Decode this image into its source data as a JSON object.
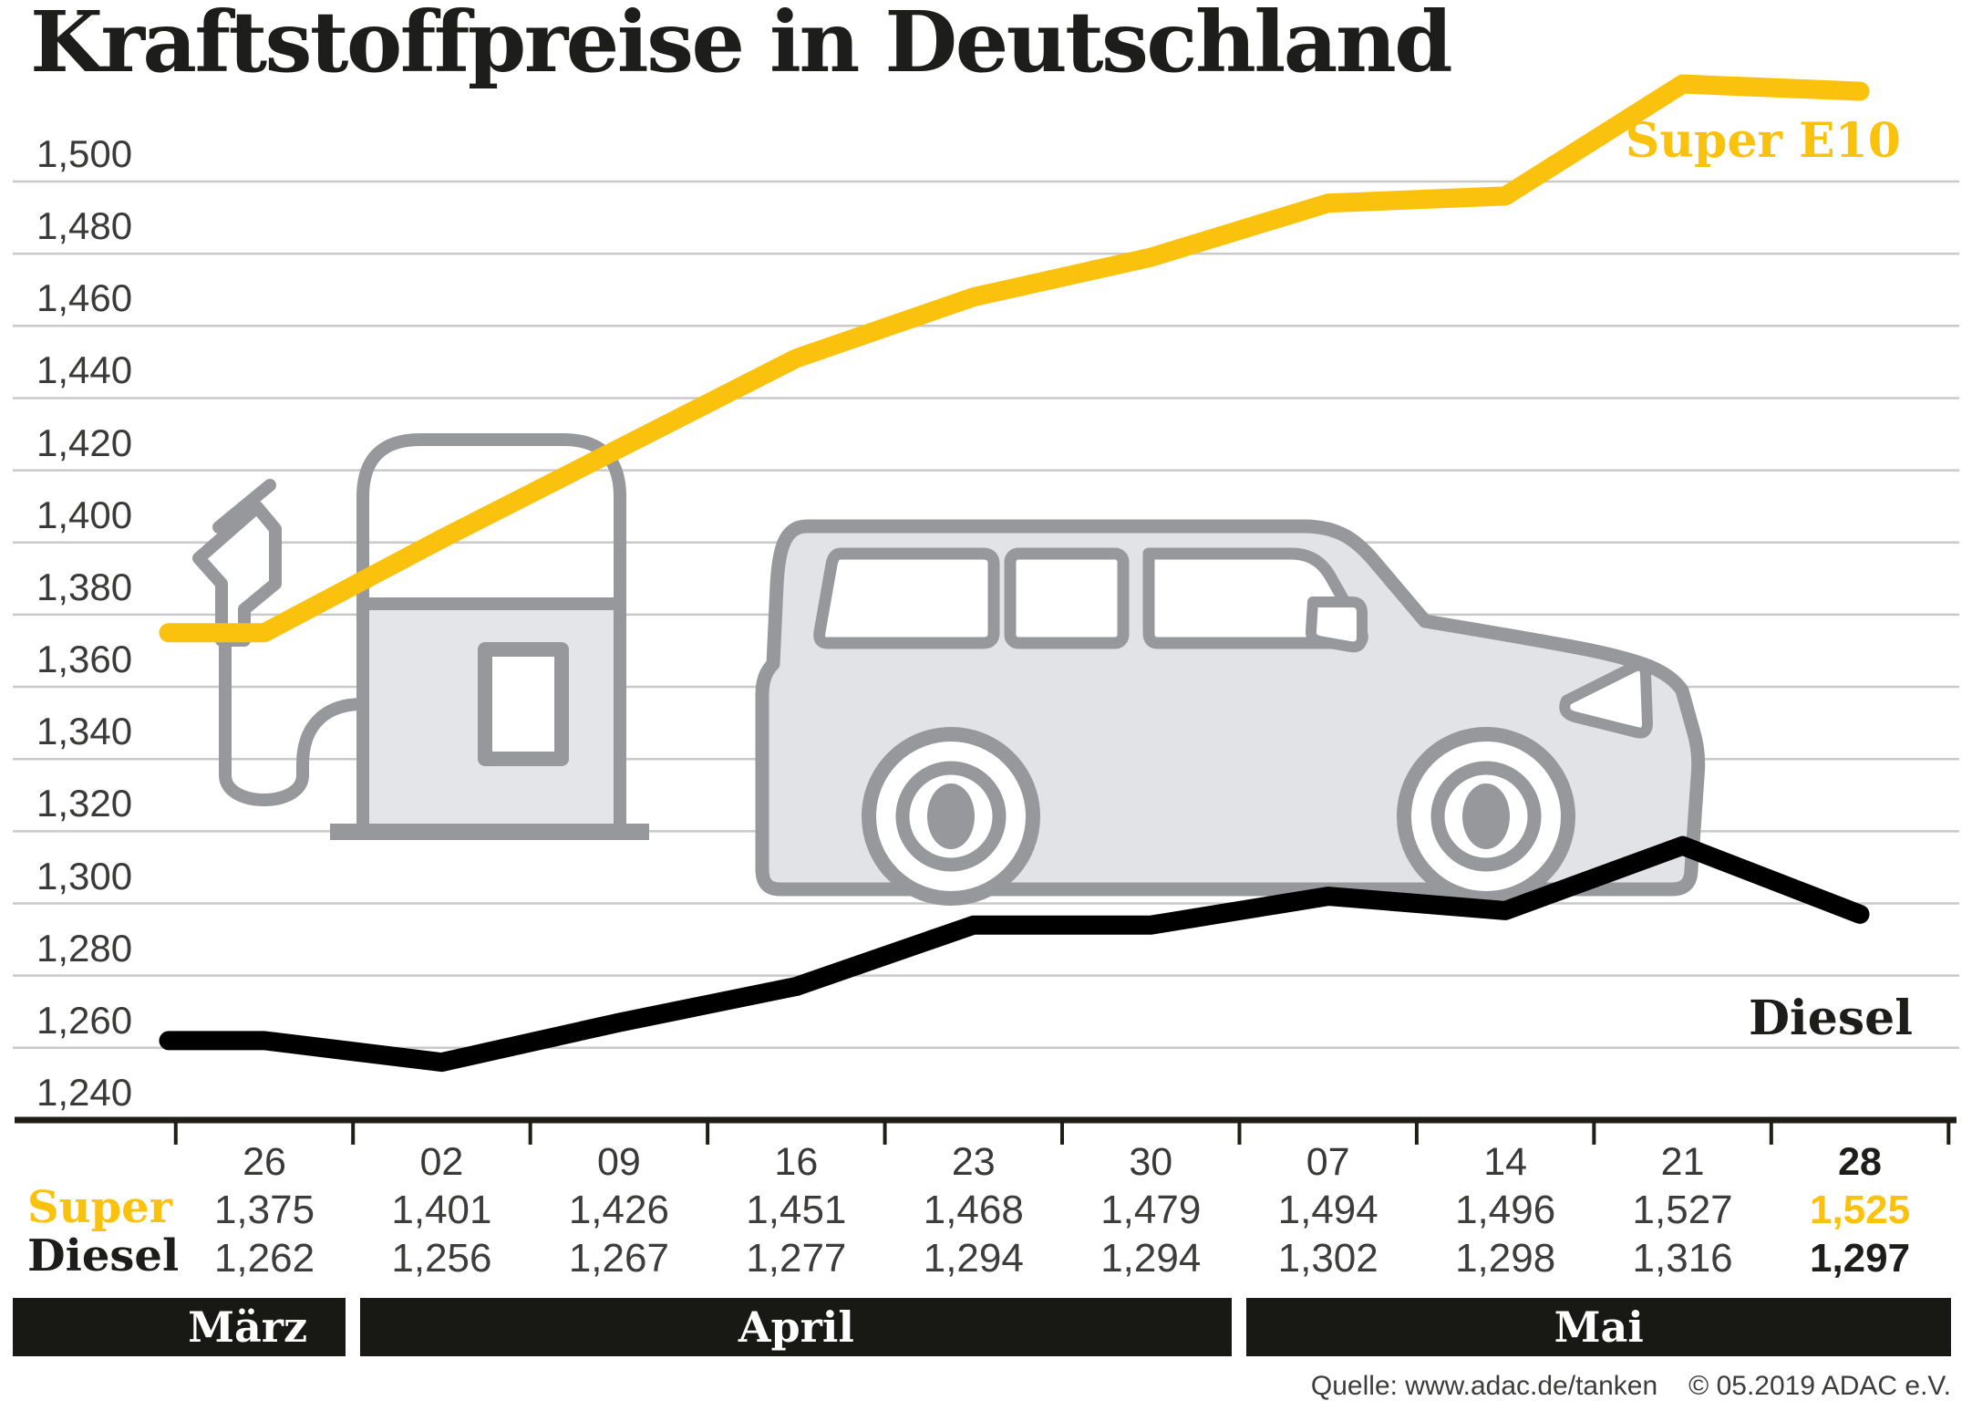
{
  "title": "Kraftstoffpreise in Deutschland",
  "chart_data": {
    "type": "line",
    "title": "Kraftstoffpreise in Deutschland",
    "x_tick_labels": [
      "26",
      "02",
      "09",
      "16",
      "23",
      "30",
      "07",
      "14",
      "21",
      "28"
    ],
    "month_bands": [
      {
        "label": "März",
        "start_col": 0,
        "end_col": 0
      },
      {
        "label": "April",
        "start_col": 1,
        "end_col": 5
      },
      {
        "label": "Mai",
        "start_col": 6,
        "end_col": 9
      }
    ],
    "y_tick_labels": [
      "1,500",
      "1,480",
      "1,460",
      "1,440",
      "1,420",
      "1,400",
      "1,380",
      "1,360",
      "1,340",
      "1,320",
      "1,300",
      "1,280",
      "1,260",
      "1,240"
    ],
    "ylim": [
      1.24,
      1.5
    ],
    "grid": true,
    "legend_position": "inline-line-labels",
    "series": [
      {
        "name": "Super E10",
        "color": "#fbc20d",
        "values": [
          1.375,
          1.401,
          1.426,
          1.451,
          1.468,
          1.479,
          1.494,
          1.496,
          1.527,
          1.525
        ]
      },
      {
        "name": "Diesel",
        "color": "#000000",
        "values": [
          1.262,
          1.256,
          1.267,
          1.277,
          1.294,
          1.294,
          1.302,
          1.298,
          1.316,
          1.297
        ]
      }
    ]
  },
  "table": {
    "row_labels": [
      "Super",
      "Diesel"
    ],
    "highlight_last_column": true
  },
  "source": {
    "text": "Quelle: www.adac.de/tanken",
    "copyright": "© 05.2019  ADAC e.V."
  },
  "colors": {
    "accent_yellow": "#fbc20d",
    "diesel_black": "#000000",
    "month_bar_black": "#181815",
    "grid_gray": "#c9c9c9",
    "axis_black": "#1f1e16",
    "icon_gray": "#97989c",
    "icon_fill": "#e3e4e7",
    "text_dark": "#3a3a39",
    "title_black": "#1d1d1b"
  }
}
